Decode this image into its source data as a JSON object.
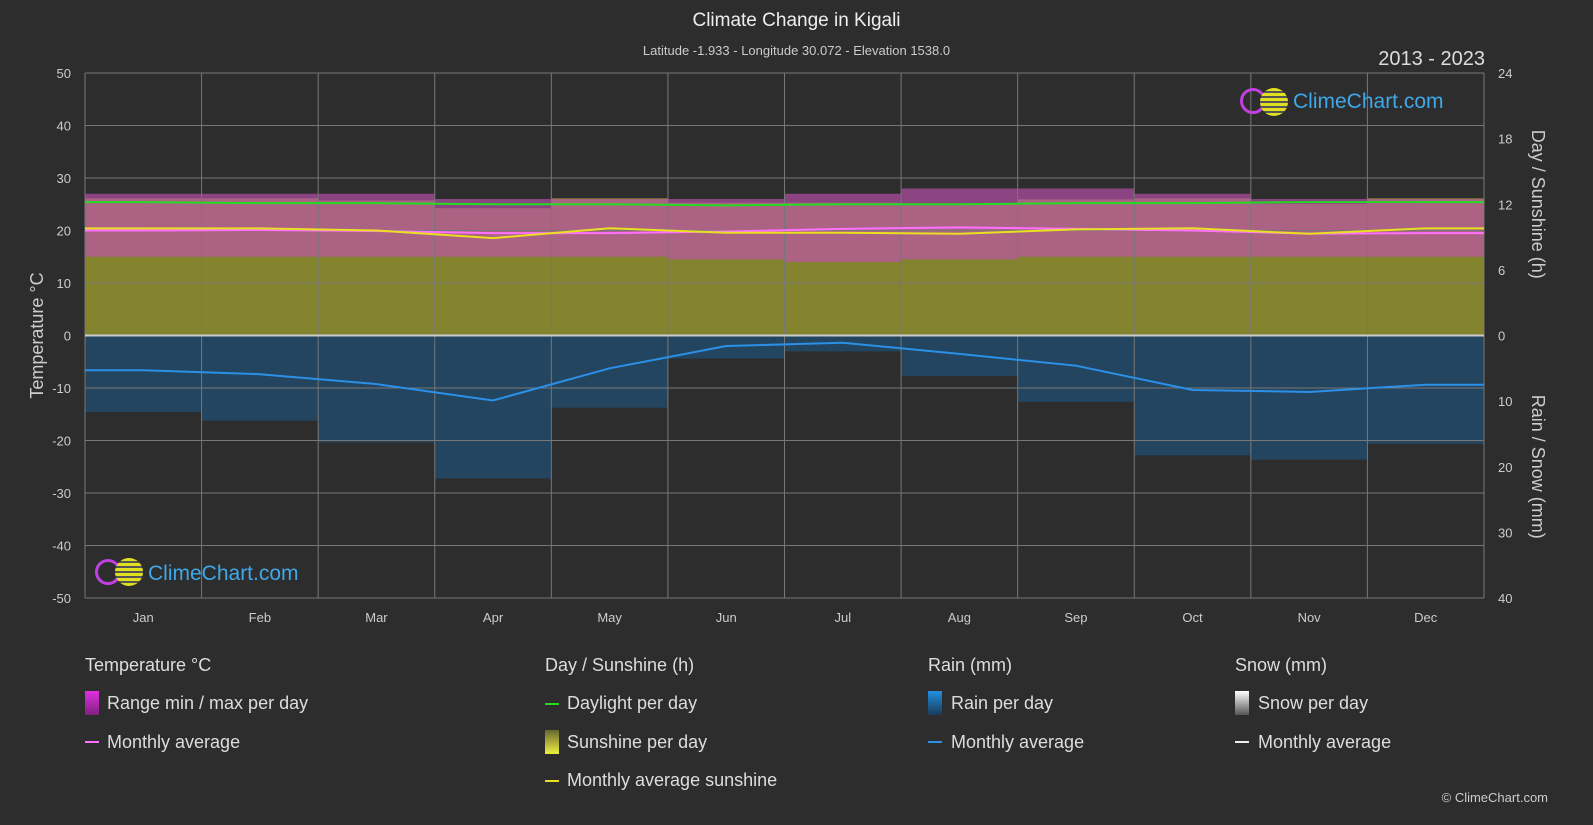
{
  "title": "Climate Change in Kigali",
  "subtitle": "Latitude -1.933 - Longitude 30.072 - Elevation 1538.0",
  "years": "2013 - 2023",
  "logo_text": "ClimeChart.com",
  "copyright": "© ClimeChart.com",
  "colors": {
    "background": "#2d2d2d",
    "temp_range": "#c040c0",
    "temp_avg": "#ff70ff",
    "daylight": "#22dd22",
    "sunshine": "#8a8a30",
    "sunshine_avg": "#e8e020",
    "rain": "#1f6fa8",
    "rain_avg": "#2b90e8"
  },
  "legend": {
    "temperature": {
      "title": "Temperature °C",
      "items": [
        "Range min / max per day",
        "Monthly average"
      ]
    },
    "sun": {
      "title": "Day / Sunshine (h)",
      "items": [
        "Daylight per day",
        "Sunshine per day",
        "Monthly average sunshine"
      ]
    },
    "rain": {
      "title": "Rain (mm)",
      "items": [
        "Rain per day",
        "Monthly average"
      ]
    },
    "snow": {
      "title": "Snow (mm)",
      "items": [
        "Snow per day",
        "Monthly average"
      ]
    }
  },
  "chart_data": {
    "type": "line",
    "title": "Climate Change in Kigali",
    "categories": [
      "Jan",
      "Feb",
      "Mar",
      "Apr",
      "May",
      "Jun",
      "Jul",
      "Aug",
      "Sep",
      "Oct",
      "Nov",
      "Dec"
    ],
    "ylabel_left": "Temperature °C",
    "ylabel_right_top": "Day / Sunshine (h)",
    "ylabel_right_bottom": "Rain / Snow (mm)",
    "ylim_left": [
      -50,
      50
    ],
    "yticks_left": [
      "50",
      "40",
      "30",
      "20",
      "10",
      "0",
      "-10",
      "-20",
      "-30",
      "-40",
      "-50"
    ],
    "yticks_right_top": [
      "24",
      "18",
      "12",
      "6",
      "0"
    ],
    "yticks_right_bottom": [
      "10",
      "20",
      "30",
      "40"
    ],
    "grid": true,
    "series": [
      {
        "name": "Monthly average",
        "axis": "temperature",
        "values": [
          20.0,
          20.1,
          19.9,
          19.5,
          19.5,
          19.8,
          20.3,
          20.6,
          20.3,
          20.0,
          19.4,
          19.5
        ]
      },
      {
        "name": "Range min / max per day",
        "axis": "temperature",
        "min": [
          15,
          15,
          15,
          15,
          15,
          14.5,
          14,
          14.5,
          15,
          15,
          15,
          15
        ],
        "max": [
          27,
          27,
          27,
          26,
          26,
          26,
          27,
          28,
          28,
          27,
          26,
          26
        ]
      },
      {
        "name": "Daylight per day",
        "axis": "sunshine",
        "values": [
          12.2,
          12.1,
          12.1,
          12.0,
          12.0,
          11.9,
          12.0,
          12.0,
          12.1,
          12.1,
          12.2,
          12.2
        ]
      },
      {
        "name": "Monthly average sunshine",
        "axis": "sunshine",
        "values": [
          9.8,
          9.8,
          9.6,
          8.9,
          9.8,
          9.4,
          9.4,
          9.3,
          9.7,
          9.8,
          9.3,
          9.8
        ]
      },
      {
        "name": "Sunshine per day",
        "axis": "sunshine",
        "values": [
          9.8,
          9.8,
          9.6,
          8.9,
          9.8,
          9.4,
          9.4,
          9.3,
          9.7,
          9.8,
          9.3,
          9.8
        ]
      },
      {
        "name": "Rain monthly average",
        "axis": "rain",
        "values": [
          5.3,
          5.9,
          7.4,
          9.9,
          5.0,
          1.6,
          1.1,
          2.8,
          4.6,
          8.3,
          8.6,
          7.5
        ]
      }
    ]
  }
}
